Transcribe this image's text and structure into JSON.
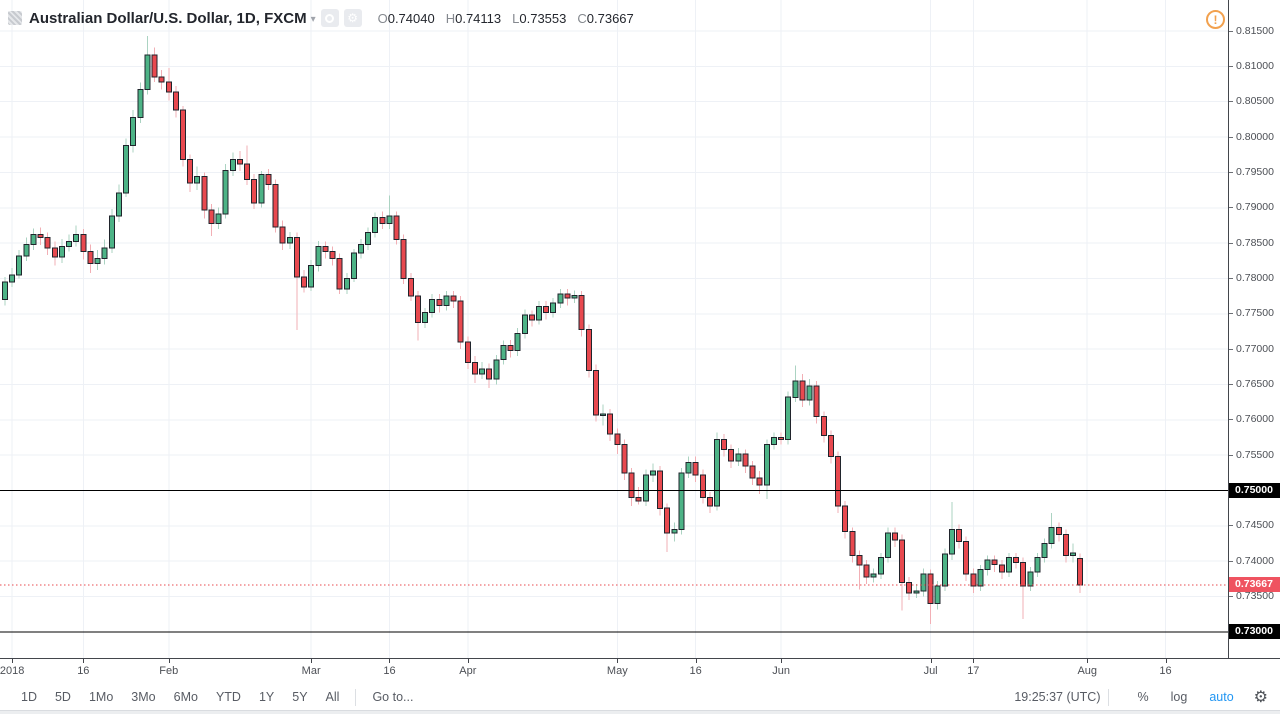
{
  "header": {
    "title": "Australian Dollar/U.S. Dollar, 1D, FXCM",
    "caret": "▾",
    "gear_glyph": "⚙",
    "alert_glyph": "!",
    "ohlc": {
      "o_label": "O",
      "o_value": "0.74040",
      "h_label": "H",
      "h_value": "0.74113",
      "l_label": "L",
      "l_value": "0.73553",
      "c_label": "C",
      "c_value": "0.73667"
    }
  },
  "toolbar": {
    "ranges": [
      "1D",
      "5D",
      "1Mo",
      "3Mo",
      "6Mo",
      "YTD",
      "1Y",
      "5Y",
      "All"
    ],
    "goto": "Go to...",
    "clock": "19:25:37 (UTC)",
    "percent": "%",
    "log": "log",
    "auto": "auto",
    "auto_color": "#2196f3",
    "settings_glyph": "⚙"
  },
  "chart_data": {
    "type": "candlestick",
    "title": "Australian Dollar/U.S. Dollar",
    "interval": "1D",
    "exchange": "FXCM",
    "ohlc_current": {
      "open": 0.7404,
      "high": 0.74113,
      "low": 0.73553,
      "close": 0.73667
    },
    "ylim": [
      0.7262,
      0.8194
    ],
    "price_step": 0.005,
    "grid": true,
    "price_labels": [
      "0.81500",
      "0.81000",
      "0.80500",
      "0.80000",
      "0.79500",
      "0.79000",
      "0.78500",
      "0.78000",
      "0.77500",
      "0.77000",
      "0.76500",
      "0.76000",
      "0.75500",
      "0.74500",
      "0.74000",
      "0.73500"
    ],
    "special_labels": [
      {
        "text": "0.75000",
        "price": 0.75,
        "style": "black"
      },
      {
        "text": "0.73000",
        "price": 0.73,
        "style": "black"
      },
      {
        "text": "0.73667",
        "price": 0.73667,
        "style": "red"
      }
    ],
    "horizontal_lines": [
      {
        "price": 0.75,
        "style": "solid",
        "color": "#000000"
      },
      {
        "price": 0.73,
        "style": "solid",
        "color": "#000000"
      },
      {
        "price": 0.73667,
        "style": "dashed",
        "color": "#e8494f"
      }
    ],
    "time_ticks": [
      {
        "label": "2018",
        "i": 1
      },
      {
        "label": "16",
        "i": 11
      },
      {
        "label": "Feb",
        "i": 23
      },
      {
        "label": "Mar",
        "i": 43
      },
      {
        "label": "16",
        "i": 54
      },
      {
        "label": "Apr",
        "i": 65
      },
      {
        "label": "May",
        "i": 86
      },
      {
        "label": "16",
        "i": 97
      },
      {
        "label": "Jun",
        "i": 109
      },
      {
        "label": "Jul",
        "i": 130
      },
      {
        "label": "17",
        "i": 136
      },
      {
        "label": "Aug",
        "i": 152
      },
      {
        "label": "16",
        "i": 163
      }
    ],
    "colors": {
      "up": "#4db386",
      "down": "#e8494f",
      "up_wick": "#abd3c2",
      "down_wick": "#f2afb5",
      "border": "#20242c",
      "grid": "#eef1f6"
    },
    "candles": [
      [
        0.777,
        0.7802,
        0.7762,
        0.7795
      ],
      [
        0.7795,
        0.7815,
        0.7788,
        0.7805
      ],
      [
        0.7805,
        0.784,
        0.78,
        0.7832
      ],
      [
        0.7832,
        0.7858,
        0.7825,
        0.7848
      ],
      [
        0.7848,
        0.7871,
        0.784,
        0.7862
      ],
      [
        0.7862,
        0.7872,
        0.7847,
        0.7858
      ],
      [
        0.7858,
        0.7865,
        0.7833,
        0.7843
      ],
      [
        0.7843,
        0.7852,
        0.7818,
        0.783
      ],
      [
        0.783,
        0.7856,
        0.7822,
        0.7845
      ],
      [
        0.7845,
        0.7862,
        0.7838,
        0.7852
      ],
      [
        0.7852,
        0.7875,
        0.7845,
        0.7862
      ],
      [
        0.7862,
        0.787,
        0.7827,
        0.7838
      ],
      [
        0.7838,
        0.7848,
        0.7808,
        0.7821
      ],
      [
        0.7821,
        0.784,
        0.7812,
        0.7828
      ],
      [
        0.7828,
        0.7855,
        0.782,
        0.7843
      ],
      [
        0.7843,
        0.7898,
        0.7836,
        0.7888
      ],
      [
        0.7888,
        0.7933,
        0.788,
        0.7921
      ],
      [
        0.7921,
        0.7998,
        0.7915,
        0.7988
      ],
      [
        0.7988,
        0.8038,
        0.7978,
        0.8028
      ],
      [
        0.8028,
        0.8077,
        0.802,
        0.8067
      ],
      [
        0.8067,
        0.8143,
        0.806,
        0.8116
      ],
      [
        0.8116,
        0.8127,
        0.8078,
        0.8085
      ],
      [
        0.8085,
        0.8095,
        0.8067,
        0.8078
      ],
      [
        0.8078,
        0.8098,
        0.8052,
        0.8064
      ],
      [
        0.8064,
        0.8072,
        0.8028,
        0.8038
      ],
      [
        0.8038,
        0.8044,
        0.7958,
        0.7968
      ],
      [
        0.7968,
        0.7975,
        0.7922,
        0.7935
      ],
      [
        0.7935,
        0.7958,
        0.7925,
        0.7944
      ],
      [
        0.7944,
        0.795,
        0.7885,
        0.7897
      ],
      [
        0.7897,
        0.7905,
        0.786,
        0.7878
      ],
      [
        0.7878,
        0.79,
        0.787,
        0.7891
      ],
      [
        0.7891,
        0.7962,
        0.7885,
        0.7953
      ],
      [
        0.7953,
        0.7978,
        0.7945,
        0.7968
      ],
      [
        0.7968,
        0.798,
        0.7952,
        0.7962
      ],
      [
        0.7962,
        0.7988,
        0.7932,
        0.794
      ],
      [
        0.794,
        0.7948,
        0.7898,
        0.7907
      ],
      [
        0.7907,
        0.7952,
        0.79,
        0.7947
      ],
      [
        0.7947,
        0.7955,
        0.7925,
        0.7933
      ],
      [
        0.7933,
        0.794,
        0.7865,
        0.7873
      ],
      [
        0.7873,
        0.7882,
        0.784,
        0.785
      ],
      [
        0.785,
        0.7866,
        0.7842,
        0.7858
      ],
      [
        0.7858,
        0.7865,
        0.7727,
        0.7802
      ],
      [
        0.7802,
        0.7812,
        0.778,
        0.7788
      ],
      [
        0.7788,
        0.7826,
        0.7782,
        0.7818
      ],
      [
        0.7818,
        0.7853,
        0.781,
        0.7845
      ],
      [
        0.7845,
        0.7852,
        0.7828,
        0.7838
      ],
      [
        0.7838,
        0.7845,
        0.7818,
        0.7828
      ],
      [
        0.7828,
        0.7835,
        0.7778,
        0.7785
      ],
      [
        0.7785,
        0.7808,
        0.7778,
        0.78
      ],
      [
        0.78,
        0.7842,
        0.7795,
        0.7836
      ],
      [
        0.7836,
        0.7856,
        0.7828,
        0.7848
      ],
      [
        0.7848,
        0.7872,
        0.784,
        0.7865
      ],
      [
        0.7865,
        0.7893,
        0.7858,
        0.7886
      ],
      [
        0.7886,
        0.7895,
        0.787,
        0.7878
      ],
      [
        0.7878,
        0.7917,
        0.787,
        0.7888
      ],
      [
        0.7888,
        0.7895,
        0.7848,
        0.7855
      ],
      [
        0.7855,
        0.7862,
        0.7792,
        0.78
      ],
      [
        0.78,
        0.7808,
        0.7768,
        0.7775
      ],
      [
        0.7775,
        0.7782,
        0.7712,
        0.7738
      ],
      [
        0.7738,
        0.7758,
        0.773,
        0.7752
      ],
      [
        0.7752,
        0.7778,
        0.7745,
        0.777
      ],
      [
        0.777,
        0.7778,
        0.7752,
        0.7762
      ],
      [
        0.7762,
        0.7782,
        0.7755,
        0.7775
      ],
      [
        0.7775,
        0.7782,
        0.7758,
        0.7768
      ],
      [
        0.7768,
        0.7775,
        0.77,
        0.771
      ],
      [
        0.771,
        0.7718,
        0.7672,
        0.7681
      ],
      [
        0.7681,
        0.769,
        0.7652,
        0.7665
      ],
      [
        0.7665,
        0.7682,
        0.7658,
        0.7672
      ],
      [
        0.7672,
        0.768,
        0.7645,
        0.7658
      ],
      [
        0.7658,
        0.7692,
        0.765,
        0.7685
      ],
      [
        0.7685,
        0.7712,
        0.7678,
        0.7705
      ],
      [
        0.7705,
        0.7713,
        0.7688,
        0.7698
      ],
      [
        0.7698,
        0.773,
        0.769,
        0.7722
      ],
      [
        0.7722,
        0.7756,
        0.7715,
        0.7748
      ],
      [
        0.7748,
        0.7755,
        0.7732,
        0.7741
      ],
      [
        0.7741,
        0.7768,
        0.7735,
        0.776
      ],
      [
        0.776,
        0.7768,
        0.7742,
        0.7752
      ],
      [
        0.7752,
        0.7772,
        0.7745,
        0.7765
      ],
      [
        0.7765,
        0.7785,
        0.7758,
        0.7778
      ],
      [
        0.7778,
        0.7785,
        0.7762,
        0.7772
      ],
      [
        0.7772,
        0.7783,
        0.7765,
        0.7776
      ],
      [
        0.7776,
        0.7782,
        0.7718,
        0.7728
      ],
      [
        0.7728,
        0.7735,
        0.766,
        0.767
      ],
      [
        0.767,
        0.7678,
        0.7598,
        0.7607
      ],
      [
        0.7607,
        0.7622,
        0.7592,
        0.7608
      ],
      [
        0.7608,
        0.7615,
        0.757,
        0.758
      ],
      [
        0.758,
        0.7588,
        0.7552,
        0.7565
      ],
      [
        0.7565,
        0.7572,
        0.7515,
        0.7525
      ],
      [
        0.7525,
        0.7532,
        0.7478,
        0.749
      ],
      [
        0.749,
        0.7505,
        0.748,
        0.7485
      ],
      [
        0.7485,
        0.753,
        0.7478,
        0.7522
      ],
      [
        0.7522,
        0.7538,
        0.7512,
        0.7528
      ],
      [
        0.7528,
        0.7535,
        0.7465,
        0.7475
      ],
      [
        0.7475,
        0.7482,
        0.7413,
        0.744
      ],
      [
        0.744,
        0.7455,
        0.7428,
        0.7445
      ],
      [
        0.7445,
        0.7532,
        0.7438,
        0.7525
      ],
      [
        0.7525,
        0.7548,
        0.7518,
        0.754
      ],
      [
        0.754,
        0.7548,
        0.7512,
        0.7522
      ],
      [
        0.7522,
        0.753,
        0.7482,
        0.749
      ],
      [
        0.749,
        0.7498,
        0.7468,
        0.7478
      ],
      [
        0.7478,
        0.7582,
        0.7472,
        0.7572
      ],
      [
        0.7572,
        0.758,
        0.7548,
        0.7558
      ],
      [
        0.7558,
        0.7565,
        0.7532,
        0.7542
      ],
      [
        0.7542,
        0.756,
        0.7535,
        0.7552
      ],
      [
        0.7552,
        0.7558,
        0.7525,
        0.7535
      ],
      [
        0.7535,
        0.7542,
        0.7508,
        0.7518
      ],
      [
        0.7518,
        0.7528,
        0.7495,
        0.7508
      ],
      [
        0.7508,
        0.7572,
        0.7488,
        0.7565
      ],
      [
        0.7565,
        0.7582,
        0.7558,
        0.7575
      ],
      [
        0.7575,
        0.7582,
        0.7565,
        0.7572
      ],
      [
        0.7572,
        0.764,
        0.7565,
        0.7632
      ],
      [
        0.7632,
        0.7677,
        0.7625,
        0.7655
      ],
      [
        0.7655,
        0.7665,
        0.7618,
        0.7628
      ],
      [
        0.7628,
        0.7658,
        0.762,
        0.7648
      ],
      [
        0.7648,
        0.7655,
        0.7595,
        0.7605
      ],
      [
        0.7605,
        0.7612,
        0.7568,
        0.7578
      ],
      [
        0.7578,
        0.7585,
        0.7538,
        0.7548
      ],
      [
        0.7548,
        0.7555,
        0.7468,
        0.7478
      ],
      [
        0.7478,
        0.7485,
        0.7432,
        0.7442
      ],
      [
        0.7442,
        0.7448,
        0.7398,
        0.7408
      ],
      [
        0.7408,
        0.7415,
        0.736,
        0.7395
      ],
      [
        0.7395,
        0.7402,
        0.7368,
        0.7378
      ],
      [
        0.7378,
        0.739,
        0.737,
        0.7382
      ],
      [
        0.7382,
        0.7412,
        0.7375,
        0.7405
      ],
      [
        0.7405,
        0.7448,
        0.7398,
        0.744
      ],
      [
        0.744,
        0.7448,
        0.742,
        0.743
      ],
      [
        0.743,
        0.7438,
        0.733,
        0.737
      ],
      [
        0.737,
        0.7378,
        0.7345,
        0.7355
      ],
      [
        0.7355,
        0.7368,
        0.7348,
        0.7358
      ],
      [
        0.7358,
        0.739,
        0.735,
        0.7382
      ],
      [
        0.7382,
        0.7388,
        0.7311,
        0.734
      ],
      [
        0.734,
        0.7372,
        0.7332,
        0.7365
      ],
      [
        0.7365,
        0.7418,
        0.7358,
        0.741
      ],
      [
        0.741,
        0.7484,
        0.7402,
        0.7445
      ],
      [
        0.7445,
        0.7452,
        0.7418,
        0.7428
      ],
      [
        0.7428,
        0.7435,
        0.7372,
        0.7382
      ],
      [
        0.7382,
        0.739,
        0.7355,
        0.7365
      ],
      [
        0.7365,
        0.7395,
        0.7358,
        0.7388
      ],
      [
        0.7388,
        0.7408,
        0.738,
        0.7402
      ],
      [
        0.7402,
        0.7408,
        0.7385,
        0.7395
      ],
      [
        0.7395,
        0.7402,
        0.7375,
        0.7385
      ],
      [
        0.7385,
        0.7412,
        0.7378,
        0.7405
      ],
      [
        0.7405,
        0.7412,
        0.739,
        0.7398
      ],
      [
        0.7398,
        0.7405,
        0.7318,
        0.7365
      ],
      [
        0.7365,
        0.7392,
        0.7358,
        0.7385
      ],
      [
        0.7385,
        0.7412,
        0.7378,
        0.7405
      ],
      [
        0.7405,
        0.7432,
        0.7398,
        0.7425
      ],
      [
        0.7425,
        0.7468,
        0.7418,
        0.7448
      ],
      [
        0.7448,
        0.7455,
        0.7428,
        0.7438
      ],
      [
        0.7438,
        0.7445,
        0.7398,
        0.7408
      ],
      [
        0.7408,
        0.7425,
        0.7398,
        0.7412
      ],
      [
        0.7404,
        0.74113,
        0.73553,
        0.73667
      ]
    ]
  }
}
